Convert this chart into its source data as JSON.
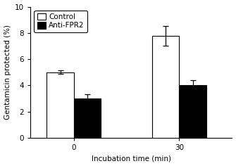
{
  "groups": [
    "0",
    "30"
  ],
  "series": [
    {
      "label": "Control",
      "values": [
        5.0,
        7.8
      ],
      "errors": [
        0.12,
        0.75
      ],
      "color": "#ffffff",
      "edgecolor": "#000000"
    },
    {
      "label": "Anti-FPR2",
      "values": [
        3.0,
        4.0
      ],
      "errors": [
        0.3,
        0.4
      ],
      "color": "#000000",
      "edgecolor": "#000000"
    }
  ],
  "ylabel": "Gentamicin protected (%)",
  "xlabel": "Incubation time (min)",
  "ylim": [
    0,
    10
  ],
  "yticks": [
    0,
    2,
    4,
    6,
    8,
    10
  ],
  "bar_width": 0.28,
  "group_centers": [
    0.55,
    1.65
  ],
  "xlim": [
    0.1,
    2.2
  ],
  "legend_pos": "upper left",
  "figsize": [
    3.35,
    2.36
  ],
  "dpi": 100,
  "fontsize_labels": 7.5,
  "fontsize_ticks": 7.5,
  "fontsize_legend": 7.5
}
